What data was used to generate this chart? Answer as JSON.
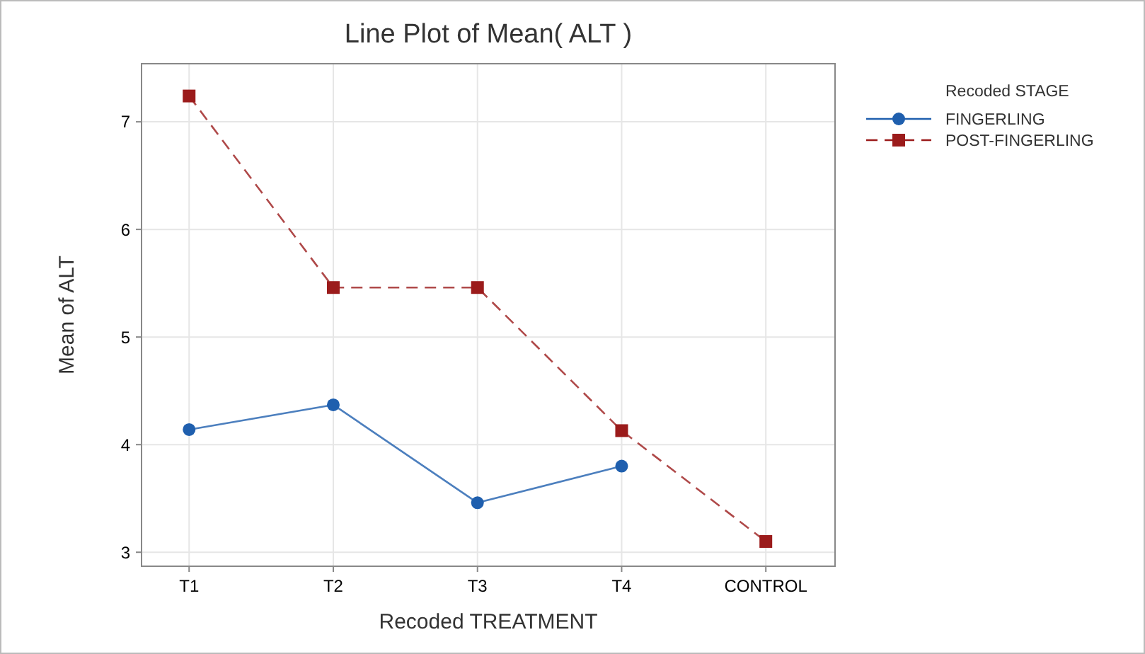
{
  "chart_data": {
    "type": "line",
    "title": "Line Plot of Mean( ALT )",
    "xlabel": "Recoded TREATMENT",
    "ylabel": "Mean of ALT",
    "legend_title": "Recoded STAGE",
    "categories": [
      "T1",
      "T2",
      "T3",
      "T4",
      "CONTROL"
    ],
    "series": [
      {
        "name": "FINGERLING",
        "color": "#1f5fae",
        "values": [
          4.14,
          4.37,
          3.46,
          3.8,
          null
        ],
        "marker": "circle",
        "line_style": "solid"
      },
      {
        "name": "POST-FINGERLING",
        "color": "#9b1b1b",
        "values": [
          7.24,
          5.46,
          5.46,
          4.13,
          3.1
        ],
        "marker": "square",
        "line_style": "dashed"
      }
    ],
    "ylim": [
      2.87,
      7.54
    ],
    "yticks": [
      3,
      4,
      5,
      6,
      7
    ],
    "grid": true,
    "legend": "top right"
  }
}
